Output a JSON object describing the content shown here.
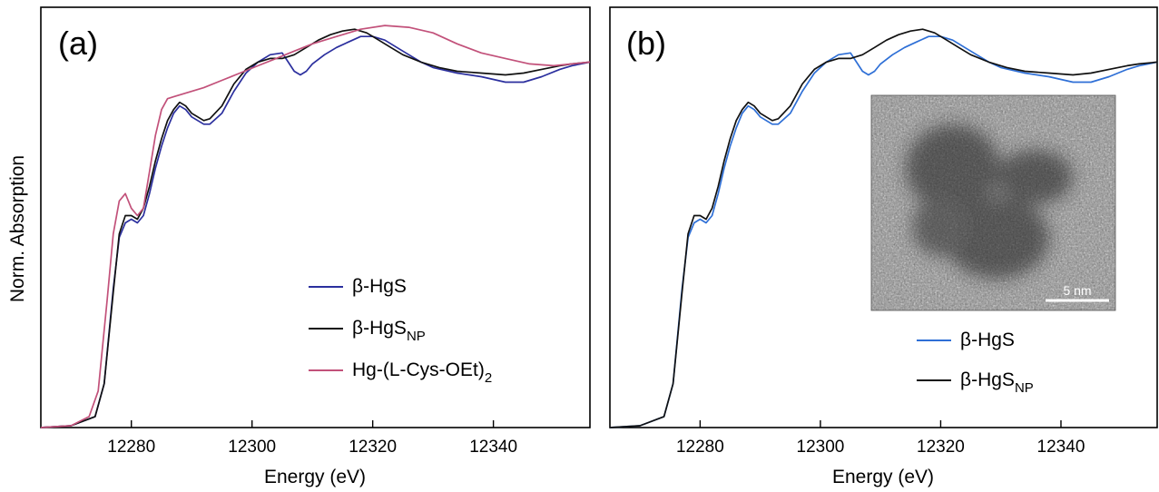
{
  "figure": {
    "ylabel": "Norm. Absorption"
  },
  "panels": [
    {
      "label": "(a)",
      "xlabel": "Energy (eV)",
      "legend": [
        {
          "base": "β-HgS",
          "sub": "",
          "after": "",
          "color": "#2b2f9e"
        },
        {
          "base": "β-HgS",
          "sub": "NP",
          "after": "",
          "color": "#111111"
        },
        {
          "base": "Hg-(L-Cys-OEt)",
          "sub": "2",
          "after": "",
          "color": "#c2517a"
        }
      ]
    },
    {
      "label": "(b)",
      "xlabel": "Energy (eV)",
      "legend": [
        {
          "base": "β-HgS",
          "sub": "",
          "after": "",
          "color": "#2e6fd6"
        },
        {
          "base": "β-HgS",
          "sub": "NP",
          "after": "",
          "color": "#111111"
        }
      ],
      "inset": {
        "image": "TEM micrograph of nanoparticles",
        "scalebar_label": "5 nm"
      }
    }
  ],
  "chart_data": [
    {
      "type": "line",
      "title": "",
      "xlabel": "Energy (eV)",
      "ylabel": "Norm. Absorption",
      "xlim": [
        12265,
        12356
      ],
      "ylim": [
        0,
        1.15
      ],
      "xticks": [
        12280,
        12300,
        12320,
        12340
      ],
      "grid": false,
      "legend_position": "bottom-right",
      "series": [
        {
          "name": "β-HgS",
          "color": "#2b2f9e",
          "x": [
            12265,
            12270,
            12274,
            12275.5,
            12277,
            12278,
            12279,
            12280,
            12281,
            12282,
            12283,
            12284,
            12285,
            12286,
            12287,
            12288,
            12289,
            12290,
            12291,
            12292,
            12293,
            12295,
            12297,
            12299,
            12301,
            12303,
            12305,
            12306,
            12307,
            12308,
            12309,
            12310,
            12312,
            12314,
            12316,
            12318,
            12320,
            12322,
            12324,
            12326,
            12328,
            12330,
            12334,
            12338,
            12342,
            12345,
            12348,
            12351,
            12353,
            12356
          ],
          "y": [
            0.0,
            0.005,
            0.03,
            0.12,
            0.38,
            0.52,
            0.56,
            0.57,
            0.56,
            0.58,
            0.64,
            0.71,
            0.77,
            0.82,
            0.86,
            0.88,
            0.87,
            0.85,
            0.84,
            0.83,
            0.83,
            0.86,
            0.92,
            0.97,
            1.0,
            1.02,
            1.025,
            1.0,
            0.975,
            0.965,
            0.975,
            0.995,
            1.02,
            1.04,
            1.055,
            1.07,
            1.07,
            1.06,
            1.04,
            1.02,
            1.0,
            0.985,
            0.97,
            0.96,
            0.945,
            0.945,
            0.96,
            0.98,
            0.99,
            1.0
          ]
        },
        {
          "name": "β-HgS_NP",
          "color": "#111111",
          "x": [
            12265,
            12270,
            12274,
            12275.5,
            12277,
            12278,
            12279,
            12280,
            12281,
            12282,
            12283,
            12284,
            12285,
            12286,
            12287,
            12288,
            12289,
            12290,
            12291,
            12292,
            12293,
            12295,
            12297,
            12299,
            12301,
            12303,
            12305,
            12307,
            12309,
            12311,
            12313,
            12315,
            12317,
            12319,
            12321,
            12323,
            12325,
            12328,
            12331,
            12334,
            12338,
            12342,
            12345,
            12348,
            12351,
            12353,
            12356
          ],
          "y": [
            0.0,
            0.005,
            0.03,
            0.12,
            0.37,
            0.53,
            0.58,
            0.58,
            0.57,
            0.6,
            0.66,
            0.73,
            0.79,
            0.84,
            0.87,
            0.89,
            0.88,
            0.86,
            0.85,
            0.84,
            0.845,
            0.88,
            0.94,
            0.98,
            1.0,
            1.01,
            1.01,
            1.02,
            1.04,
            1.06,
            1.075,
            1.085,
            1.09,
            1.08,
            1.06,
            1.04,
            1.02,
            1.0,
            0.985,
            0.975,
            0.97,
            0.965,
            0.97,
            0.98,
            0.99,
            0.995,
            1.0
          ]
        },
        {
          "name": "Hg-(L-Cys-OEt)2",
          "color": "#c2517a",
          "x": [
            12265,
            12270,
            12273,
            12274.5,
            12276,
            12277,
            12278,
            12279,
            12280,
            12281,
            12282,
            12283,
            12284,
            12285,
            12286,
            12287,
            12289,
            12292,
            12295,
            12298,
            12301,
            12304,
            12307,
            12310,
            12314,
            12318,
            12322,
            12326,
            12330,
            12334,
            12338,
            12342,
            12346,
            12350,
            12353,
            12356
          ],
          "y": [
            0.0,
            0.005,
            0.03,
            0.1,
            0.35,
            0.53,
            0.62,
            0.64,
            0.6,
            0.58,
            0.6,
            0.7,
            0.8,
            0.87,
            0.9,
            0.905,
            0.915,
            0.93,
            0.95,
            0.97,
            0.99,
            1.01,
            1.03,
            1.05,
            1.07,
            1.09,
            1.1,
            1.095,
            1.08,
            1.05,
            1.025,
            1.01,
            0.995,
            0.99,
            0.995,
            1.0
          ]
        }
      ]
    },
    {
      "type": "line",
      "title": "",
      "xlabel": "Energy (eV)",
      "ylabel": "",
      "xlim": [
        12265,
        12356
      ],
      "ylim": [
        0,
        1.15
      ],
      "xticks": [
        12280,
        12300,
        12320,
        12340
      ],
      "grid": false,
      "legend_position": "bottom-right",
      "series": [
        {
          "name": "β-HgS",
          "color": "#2e6fd6",
          "x": [
            12265,
            12270,
            12274,
            12275.5,
            12277,
            12278,
            12279,
            12280,
            12281,
            12282,
            12283,
            12284,
            12285,
            12286,
            12287,
            12288,
            12289,
            12290,
            12291,
            12292,
            12293,
            12295,
            12297,
            12299,
            12301,
            12303,
            12305,
            12306,
            12307,
            12308,
            12309,
            12310,
            12312,
            12314,
            12316,
            12318,
            12320,
            12322,
            12324,
            12326,
            12328,
            12330,
            12334,
            12338,
            12342,
            12345,
            12348,
            12351,
            12353,
            12356
          ],
          "y": [
            0.0,
            0.005,
            0.03,
            0.12,
            0.38,
            0.52,
            0.56,
            0.57,
            0.56,
            0.58,
            0.64,
            0.71,
            0.77,
            0.82,
            0.86,
            0.88,
            0.87,
            0.85,
            0.84,
            0.83,
            0.83,
            0.86,
            0.92,
            0.97,
            1.0,
            1.02,
            1.025,
            1.0,
            0.975,
            0.965,
            0.975,
            0.995,
            1.02,
            1.04,
            1.055,
            1.07,
            1.07,
            1.06,
            1.04,
            1.02,
            1.0,
            0.985,
            0.97,
            0.96,
            0.945,
            0.945,
            0.96,
            0.98,
            0.99,
            1.0
          ]
        },
        {
          "name": "β-HgS_NP",
          "color": "#111111",
          "x": [
            12265,
            12270,
            12274,
            12275.5,
            12277,
            12278,
            12279,
            12280,
            12281,
            12282,
            12283,
            12284,
            12285,
            12286,
            12287,
            12288,
            12289,
            12290,
            12291,
            12292,
            12293,
            12295,
            12297,
            12299,
            12301,
            12303,
            12305,
            12307,
            12309,
            12311,
            12313,
            12315,
            12317,
            12319,
            12321,
            12323,
            12325,
            12328,
            12331,
            12334,
            12338,
            12342,
            12345,
            12348,
            12351,
            12353,
            12356
          ],
          "y": [
            0.0,
            0.005,
            0.03,
            0.12,
            0.37,
            0.53,
            0.58,
            0.58,
            0.57,
            0.6,
            0.66,
            0.73,
            0.79,
            0.84,
            0.87,
            0.89,
            0.88,
            0.86,
            0.85,
            0.84,
            0.845,
            0.88,
            0.94,
            0.98,
            1.0,
            1.01,
            1.01,
            1.02,
            1.04,
            1.06,
            1.075,
            1.085,
            1.09,
            1.08,
            1.06,
            1.04,
            1.02,
            1.0,
            0.985,
            0.975,
            0.97,
            0.965,
            0.97,
            0.98,
            0.99,
            0.995,
            1.0
          ]
        }
      ]
    }
  ]
}
